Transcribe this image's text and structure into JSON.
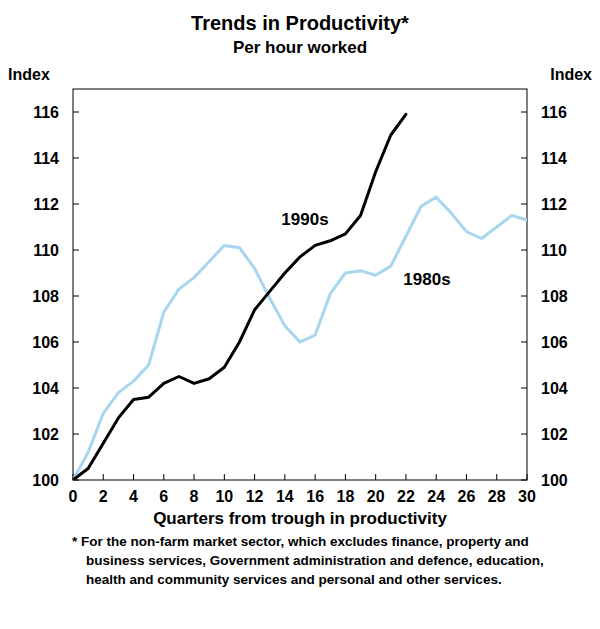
{
  "chart_data": {
    "type": "line",
    "title": "Trends in Productivity*",
    "subtitle": "Per hour worked",
    "y_label": "Index",
    "x_label": "Quarters from trough in productivity",
    "note": "* For the non-farm market sector, which excludes finance, property and business services, Government administration and defence, education, health and community services and personal and other services.",
    "x": [
      0,
      1,
      2,
      3,
      4,
      5,
      6,
      7,
      8,
      9,
      10,
      11,
      12,
      13,
      14,
      15,
      16,
      17,
      18,
      19,
      20,
      21,
      22,
      23,
      24,
      25,
      26,
      27,
      28,
      29,
      30
    ],
    "series": [
      {
        "name": "1990s",
        "color": "#000000",
        "values": [
          100,
          100.5,
          101.6,
          102.7,
          103.5,
          103.6,
          104.2,
          104.5,
          104.2,
          104.4,
          104.9,
          106.0,
          107.4,
          108.2,
          109.0,
          109.7,
          110.2,
          110.4,
          110.7,
          111.5,
          113.4,
          115.0,
          115.9,
          null,
          null,
          null,
          null,
          null,
          null,
          null,
          null
        ]
      },
      {
        "name": "1980s",
        "color": "#a8d6ef",
        "values": [
          100,
          101.2,
          102.9,
          103.8,
          104.3,
          105.0,
          107.3,
          108.3,
          108.8,
          109.5,
          110.2,
          110.1,
          109.2,
          107.9,
          106.7,
          106.0,
          106.3,
          108.1,
          109.0,
          109.1,
          108.9,
          109.3,
          110.6,
          111.9,
          112.3,
          111.6,
          110.8,
          110.5,
          111.0,
          111.5,
          111.3
        ]
      }
    ],
    "xlim": [
      0,
      30
    ],
    "xticks": [
      0,
      2,
      4,
      6,
      8,
      10,
      12,
      14,
      16,
      18,
      20,
      22,
      24,
      26,
      28,
      30
    ],
    "ylim": [
      100,
      117
    ],
    "yticks": [
      100,
      102,
      104,
      106,
      108,
      110,
      112,
      114,
      116
    ],
    "grid": false
  }
}
